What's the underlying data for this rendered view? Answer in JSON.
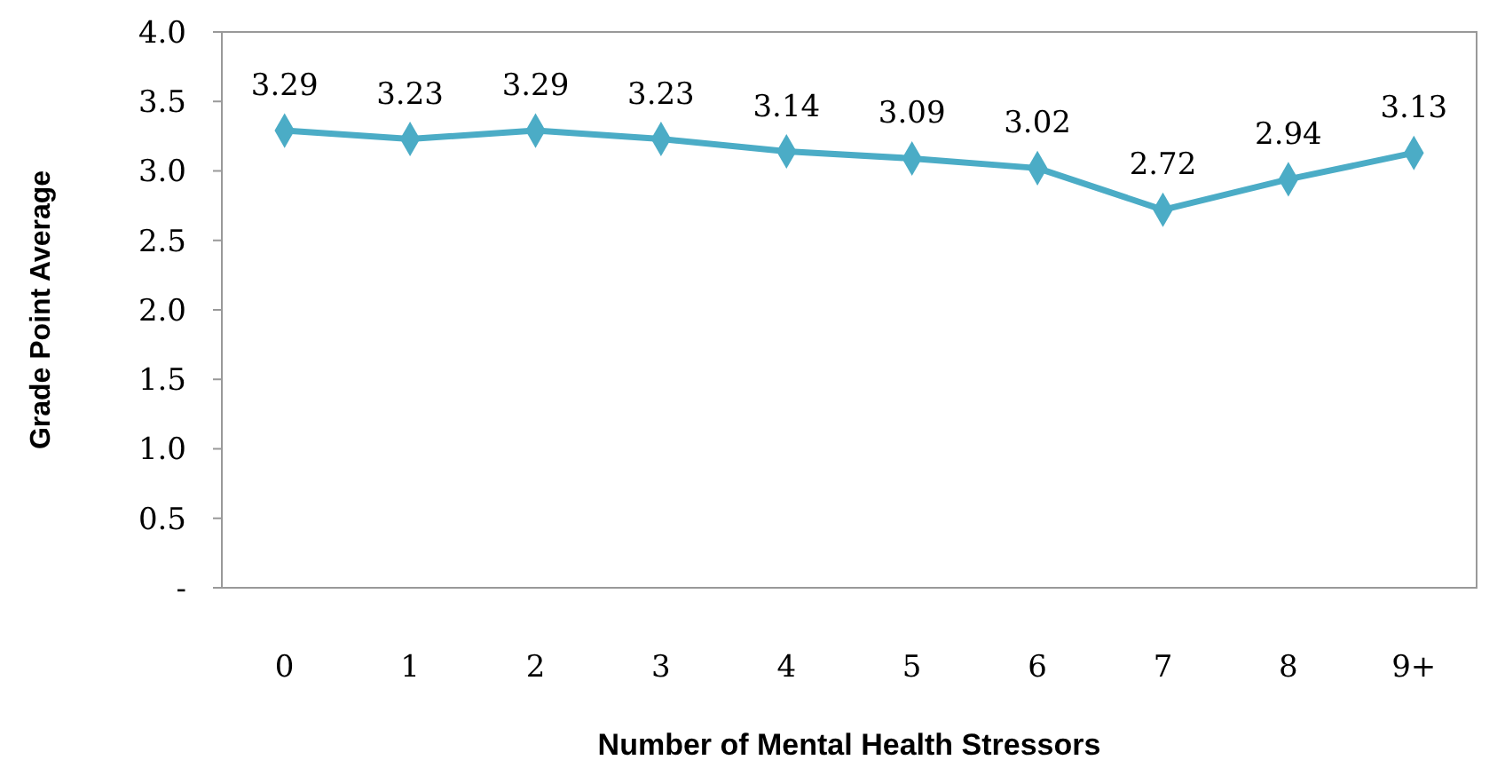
{
  "chart_data": {
    "type": "line",
    "xlabel": "Number of Mental Health Stressors",
    "ylabel": "Grade Point Average",
    "categories": [
      "0",
      "1",
      "2",
      "3",
      "4",
      "5",
      "6",
      "7",
      "8",
      "9+"
    ],
    "series": [
      {
        "color": "#4bacc6",
        "values": [
          3.29,
          3.23,
          3.29,
          3.23,
          3.14,
          3.09,
          3.02,
          2.72,
          2.94,
          3.13
        ]
      }
    ],
    "ylim": [
      0,
      4
    ],
    "yticks": [
      {
        "value": 0,
        "label": "-"
      },
      {
        "value": 0.5,
        "label": "0.5"
      },
      {
        "value": 1,
        "label": "1.0"
      },
      {
        "value": 1.5,
        "label": "1.5"
      },
      {
        "value": 2,
        "label": "2.0"
      },
      {
        "value": 2.5,
        "label": "2.5"
      },
      {
        "value": 3,
        "label": "3.0"
      },
      {
        "value": 3.5,
        "label": "3.5"
      },
      {
        "value": 4,
        "label": "4.0"
      }
    ],
    "grid": false,
    "marker": "diamond",
    "line_style": "solid",
    "data_labels": true
  }
}
